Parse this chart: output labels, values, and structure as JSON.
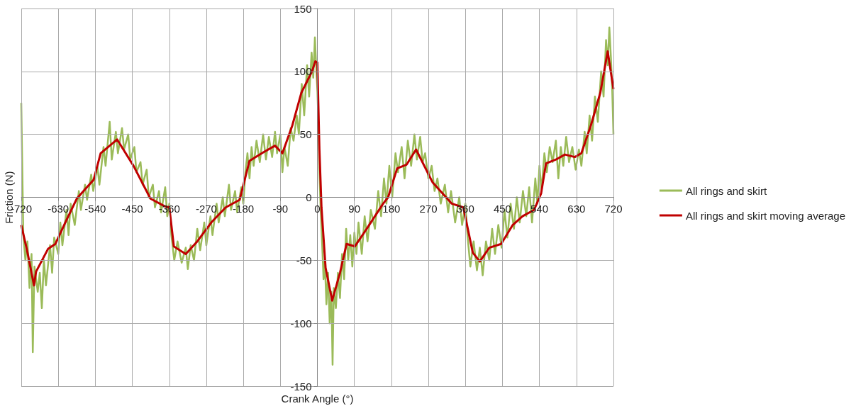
{
  "chart_data": {
    "type": "line",
    "xlabel": "Crank Angle (°)",
    "ylabel": "Friction (N)",
    "xlim": [
      -720,
      720
    ],
    "xticks": [
      -720,
      -630,
      -540,
      -450,
      -360,
      -270,
      -180,
      -90,
      0,
      90,
      180,
      270,
      360,
      450,
      540,
      630,
      720
    ],
    "ylim": [
      -150,
      150
    ],
    "yticks": [
      -150,
      -100,
      -50,
      0,
      50,
      100,
      150
    ],
    "grid": true,
    "legend": "right",
    "marker": "none",
    "line_style": "solid",
    "series": [
      {
        "name": "All rings and skirt",
        "color": "#9bbb59",
        "x": [
          -720,
          -715,
          -710,
          -705,
          -700,
          -695,
          -692,
          -688,
          -680,
          -675,
          -670,
          -665,
          -660,
          -650,
          -645,
          -640,
          -630,
          -625,
          -620,
          -610,
          -605,
          -600,
          -590,
          -580,
          -575,
          -565,
          -560,
          -550,
          -545,
          -535,
          -530,
          -520,
          -515,
          -505,
          -500,
          -490,
          -485,
          -475,
          -470,
          -460,
          -455,
          -445,
          -440,
          -430,
          -425,
          -415,
          -410,
          -400,
          -395,
          -385,
          -380,
          -370,
          -365,
          -360,
          -355,
          -348,
          -340,
          -330,
          -320,
          -315,
          -308,
          -300,
          -292,
          -285,
          -275,
          -270,
          -260,
          -255,
          -245,
          -240,
          -230,
          -225,
          -215,
          -210,
          -200,
          -195,
          -185,
          -180,
          -175,
          -170,
          -165,
          -160,
          -155,
          -148,
          -140,
          -132,
          -125,
          -118,
          -110,
          -103,
          -98,
          -90,
          -85,
          -80,
          -72,
          -65,
          -58,
          -50,
          -45,
          -38,
          -32,
          -25,
          -20,
          -14,
          -10,
          -6,
          -3,
          0,
          3,
          5,
          8,
          12,
          15,
          18,
          22,
          26,
          30,
          34,
          37,
          40,
          45,
          50,
          55,
          60,
          65,
          70,
          75,
          80,
          85,
          90,
          95,
          100,
          108,
          115,
          122,
          130,
          140,
          148,
          155,
          162,
          168,
          175,
          182,
          190,
          196,
          205,
          212,
          220,
          228,
          236,
          242,
          250,
          256,
          262,
          270,
          278,
          285,
          292,
          300,
          310,
          318,
          325,
          335,
          345,
          352,
          360,
          365,
          372,
          380,
          388,
          395,
          402,
          410,
          418,
          425,
          432,
          440,
          448,
          455,
          462,
          470,
          478,
          485,
          492,
          500,
          508,
          515,
          522,
          530,
          535,
          540,
          545,
          552,
          558,
          565,
          572,
          580,
          586,
          592,
          598,
          605,
          612,
          620,
          628,
          636,
          642,
          650,
          655,
          662,
          668,
          675,
          682,
          690,
          696,
          702,
          706,
          710,
          714,
          717,
          720
        ],
        "values": [
          75,
          -30,
          -50,
          -35,
          -72,
          -45,
          -123,
          -55,
          -75,
          -60,
          -88,
          -50,
          -70,
          -38,
          -60,
          -32,
          -45,
          -20,
          -38,
          -10,
          -30,
          -5,
          -22,
          5,
          -10,
          10,
          -2,
          18,
          5,
          25,
          10,
          40,
          25,
          60,
          30,
          52,
          35,
          55,
          38,
          50,
          30,
          40,
          20,
          28,
          10,
          22,
          0,
          10,
          -8,
          5,
          -12,
          8,
          -15,
          -5,
          -30,
          -50,
          -35,
          -52,
          -40,
          -57,
          -38,
          -50,
          -25,
          -42,
          -20,
          -38,
          -15,
          -30,
          -5,
          -20,
          0,
          -15,
          10,
          -10,
          5,
          -12,
          8,
          -5,
          20,
          35,
          15,
          40,
          25,
          45,
          28,
          50,
          30,
          48,
          32,
          52,
          35,
          50,
          20,
          40,
          25,
          55,
          45,
          65,
          50,
          90,
          65,
          105,
          80,
          115,
          95,
          127,
          105,
          85,
          55,
          20,
          -10,
          -40,
          -65,
          -50,
          -85,
          -60,
          -100,
          -75,
          -133,
          -72,
          -88,
          -60,
          -80,
          -45,
          -65,
          -25,
          -50,
          -30,
          -55,
          -28,
          -45,
          -20,
          -45,
          -15,
          -35,
          -10,
          -25,
          5,
          -15,
          15,
          -5,
          25,
          0,
          35,
          20,
          40,
          15,
          45,
          25,
          50,
          30,
          48,
          28,
          35,
          15,
          25,
          5,
          15,
          -5,
          10,
          -12,
          5,
          -20,
          0,
          -22,
          -5,
          -30,
          -55,
          -35,
          -58,
          -40,
          -62,
          -35,
          -50,
          -25,
          -45,
          -22,
          -40,
          -10,
          -32,
          -5,
          -25,
          0,
          -20,
          5,
          -15,
          8,
          -20,
          15,
          -5,
          25,
          5,
          35,
          20,
          40,
          28,
          45,
          15,
          40,
          25,
          48,
          28,
          40,
          22,
          38,
          25,
          52,
          35,
          65,
          45,
          80,
          60,
          100,
          80,
          125,
          105,
          135,
          110,
          85,
          50
        ]
      },
      {
        "name": "All rings and skirt moving average",
        "color": "#c00000",
        "x": [
          -720,
          -706,
          -689,
          -684,
          -655,
          -637,
          -613,
          -585,
          -544,
          -527,
          -487,
          -447,
          -406,
          -372,
          -360,
          -349,
          -320,
          -292,
          -258,
          -223,
          -189,
          -165,
          -130,
          -103,
          -85,
          -61,
          -39,
          -13,
          -5,
          0,
          5,
          10,
          20,
          36,
          55,
          71,
          91,
          120,
          160,
          172,
          194,
          217,
          240,
          280,
          327,
          355,
          378,
          395,
          418,
          447,
          475,
          499,
          527,
          544,
          556,
          580,
          602,
          626,
          642,
          665,
          688,
          706,
          720
        ],
        "values": [
          -22,
          -42,
          -70,
          -59,
          -41,
          -37,
          -20,
          -1,
          14,
          35,
          46,
          25,
          -1,
          -7,
          -8,
          -39,
          -45,
          -35,
          -20,
          -8,
          -2,
          29,
          36,
          41,
          35,
          57,
          83,
          100,
          108,
          107,
          38,
          -8,
          -56,
          -82,
          -60,
          -37,
          -39,
          -25,
          -5,
          0,
          23,
          26,
          38,
          12,
          -5,
          -8,
          -44,
          -51,
          -40,
          -37,
          -22,
          -15,
          -10,
          3,
          27,
          30,
          34,
          32,
          35,
          57,
          83,
          116,
          86
        ]
      }
    ]
  }
}
